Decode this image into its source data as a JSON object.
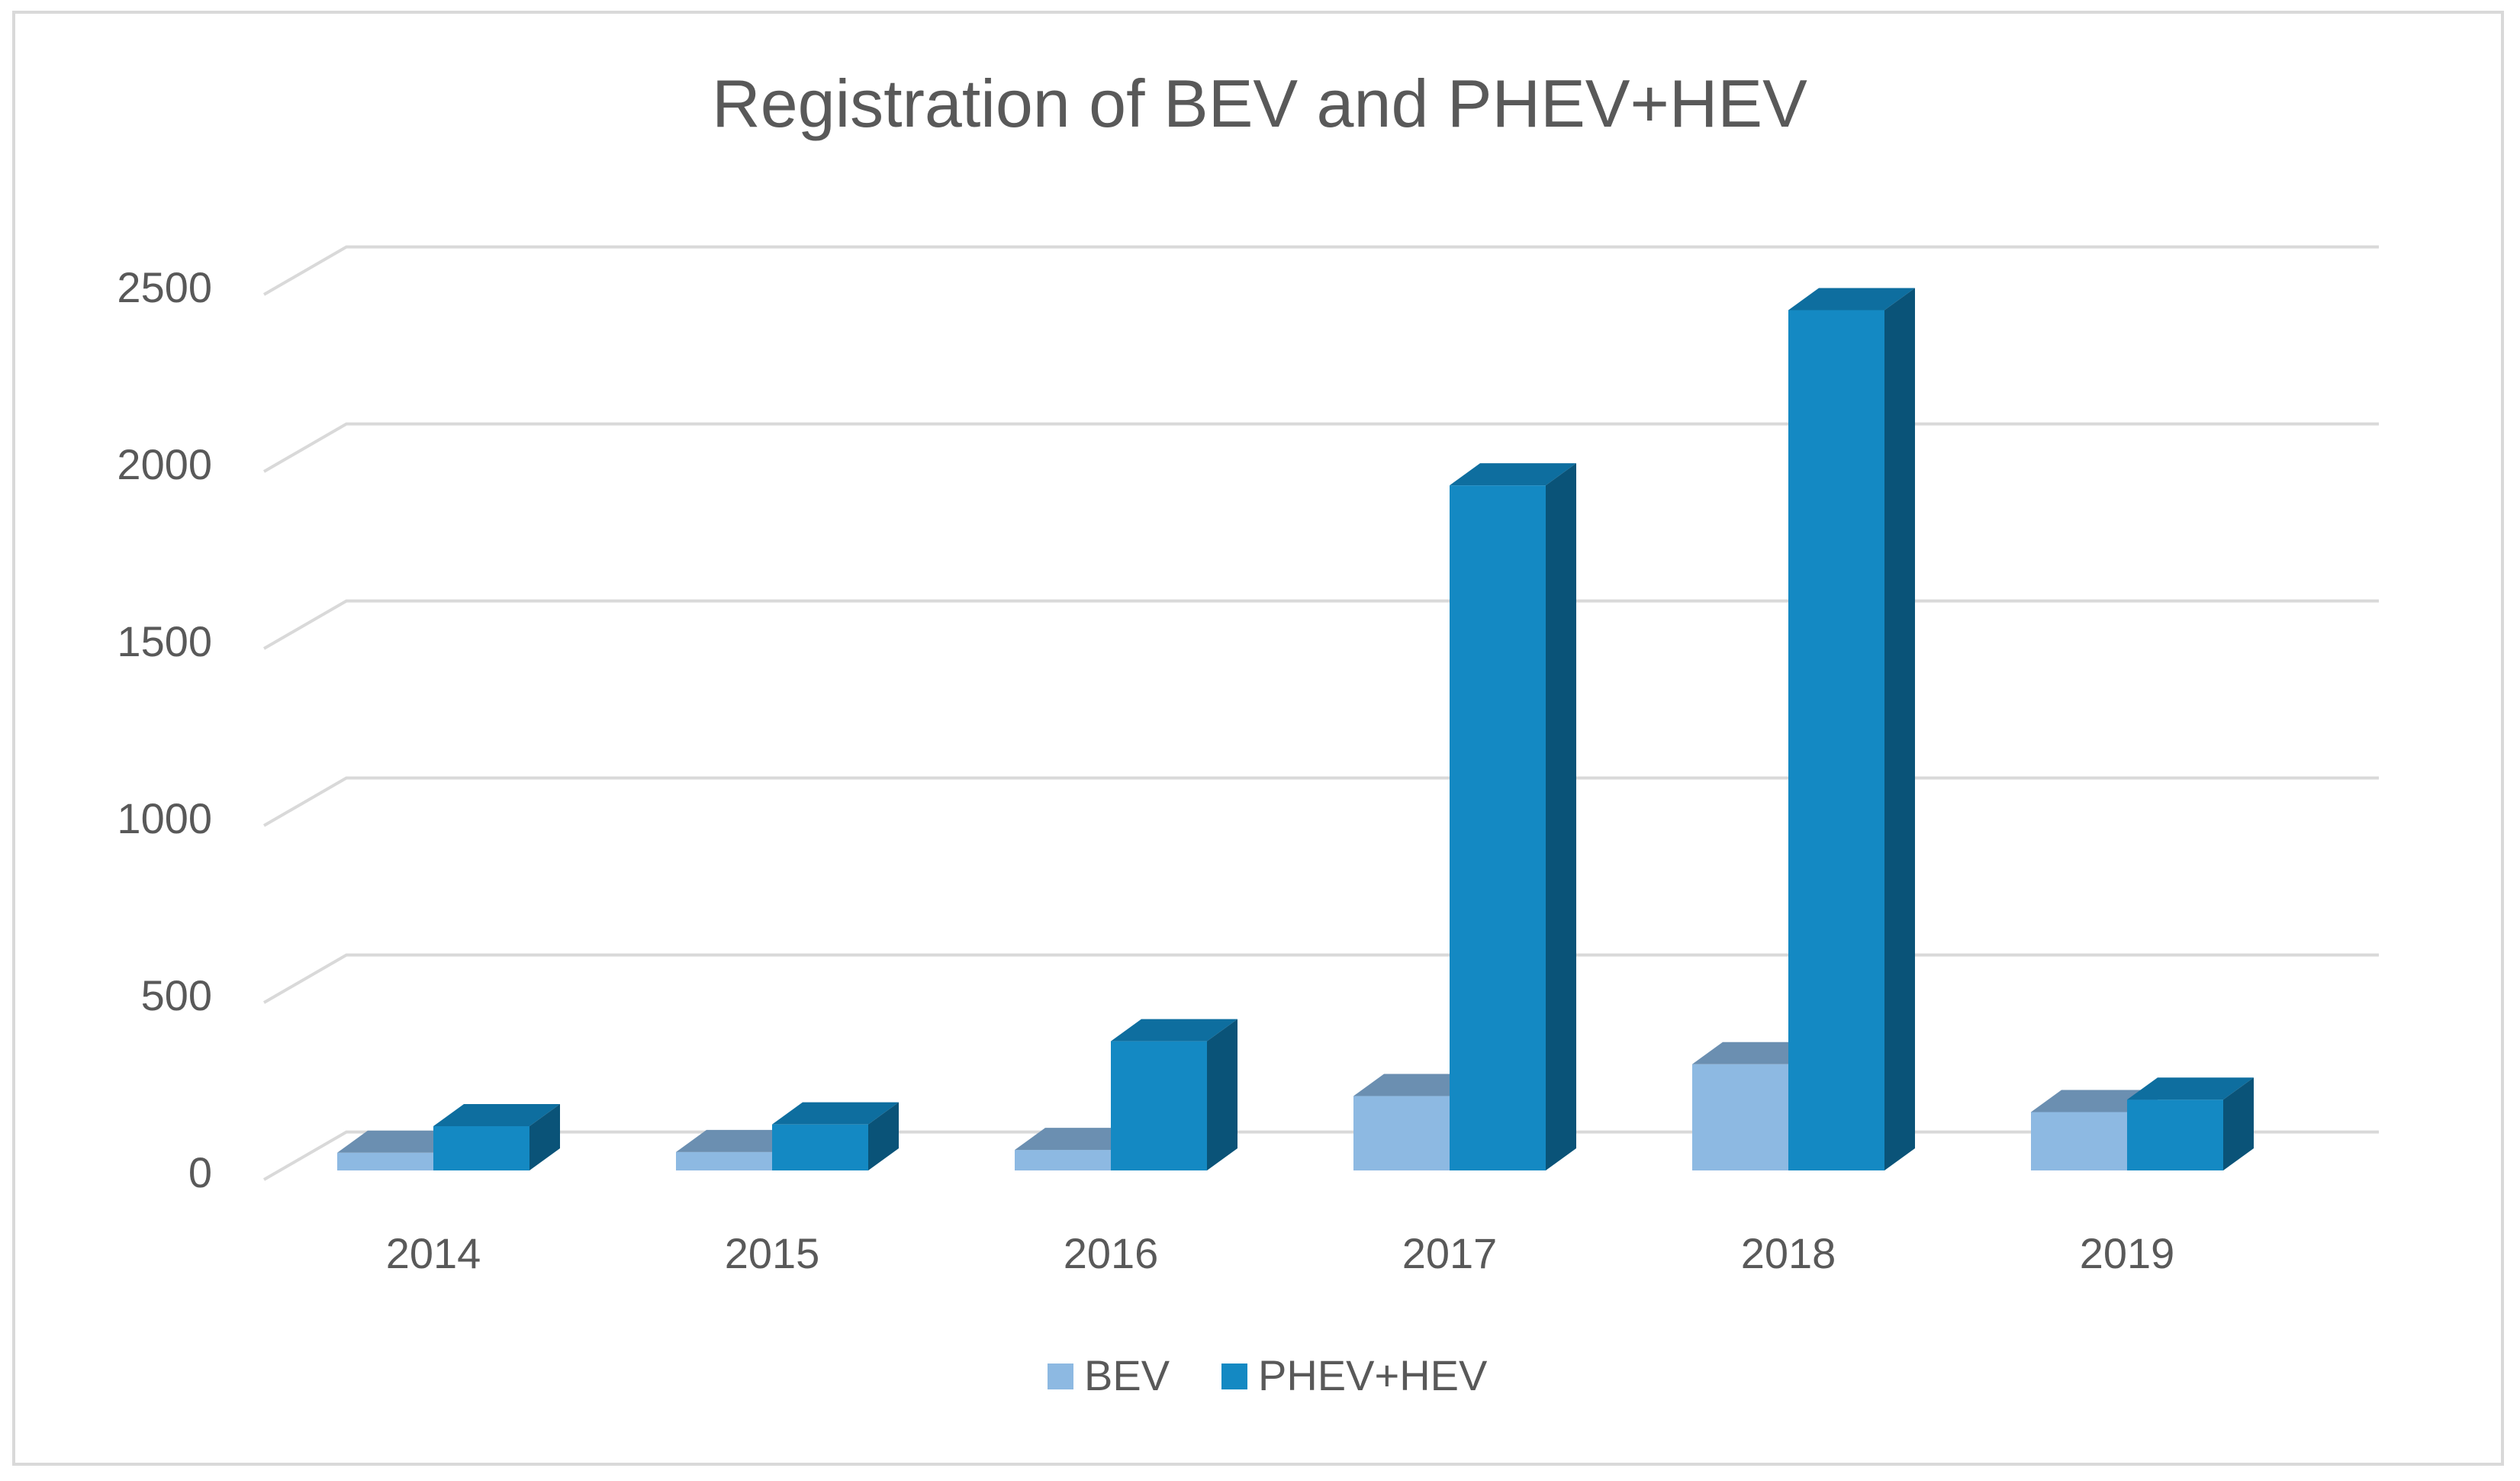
{
  "chart_data": {
    "type": "bar",
    "style": "3d-clustered-column",
    "title": "Registration of BEV and PHEV+HEV",
    "xlabel": "",
    "ylabel": "",
    "categories": [
      "2014",
      "2015",
      "2016",
      "2017",
      "2018",
      "2019"
    ],
    "series": [
      {
        "name": "BEV",
        "values": [
          50,
          52,
          58,
          210,
          300,
          165
        ],
        "color": "#8db9e2",
        "top_color": "#6b8fb1",
        "side_color": "#5f8ab5"
      },
      {
        "name": "PHEV+HEV",
        "values": [
          125,
          130,
          365,
          1935,
          2430,
          200
        ],
        "color": "#1489c3",
        "top_color": "#0e6e9f",
        "side_color": "#0a5378"
      }
    ],
    "ylim": [
      0,
      2500
    ],
    "yticks": [
      "0",
      "500",
      "1000",
      "1500",
      "2000",
      "2500"
    ],
    "grid": true,
    "legend": "bottom"
  }
}
